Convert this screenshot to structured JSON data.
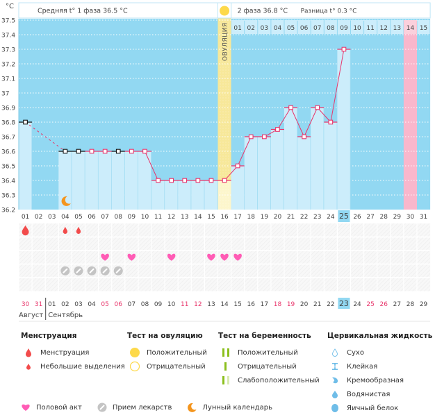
{
  "chart_data": {
    "type": "line",
    "title": "",
    "ylabel": "°C",
    "ylim": [
      36.2,
      37.5
    ],
    "yticks": [
      "37.5",
      "37.4",
      "37.3",
      "37.2",
      "37.1",
      "37",
      "36.9",
      "36.8",
      "36.7",
      "36.6",
      "36.5",
      "36.4",
      "36.3",
      "36.2"
    ],
    "cycle_days": [
      "01",
      "02",
      "03",
      "04",
      "05",
      "06",
      "07",
      "08",
      "09",
      "10",
      "11",
      "12",
      "13",
      "14",
      "15",
      "16",
      "17",
      "18",
      "19",
      "20",
      "21",
      "22",
      "23",
      "24",
      "25",
      "26",
      "27",
      "28",
      "29",
      "30",
      "31"
    ],
    "phase2_days": [
      "01",
      "02",
      "03",
      "04",
      "05",
      "06",
      "07",
      "08",
      "09",
      "10",
      "11",
      "12",
      "13",
      "14",
      "15"
    ],
    "temperatures": [
      {
        "day": 1,
        "value": 36.8,
        "marker": "black"
      },
      {
        "day": 4,
        "value": 36.6,
        "marker": "black"
      },
      {
        "day": 5,
        "value": 36.6,
        "marker": "black"
      },
      {
        "day": 6,
        "value": 36.6,
        "marker": "pink"
      },
      {
        "day": 7,
        "value": 36.6,
        "marker": "pink"
      },
      {
        "day": 8,
        "value": 36.6,
        "marker": "black"
      },
      {
        "day": 9,
        "value": 36.6,
        "marker": "pink"
      },
      {
        "day": 10,
        "value": 36.6,
        "marker": "pink"
      },
      {
        "day": 11,
        "value": 36.4,
        "marker": "pink"
      },
      {
        "day": 12,
        "value": 36.4,
        "marker": "pink"
      },
      {
        "day": 13,
        "value": 36.4,
        "marker": "pink"
      },
      {
        "day": 14,
        "value": 36.4,
        "marker": "pink"
      },
      {
        "day": 15,
        "value": 36.4,
        "marker": "pink"
      },
      {
        "day": 16,
        "value": 36.4,
        "marker": "pink"
      },
      {
        "day": 17,
        "value": 36.5,
        "marker": "pink"
      },
      {
        "day": 18,
        "value": 36.7,
        "marker": "pink"
      },
      {
        "day": 19,
        "value": 36.7,
        "marker": "pink"
      },
      {
        "day": 20,
        "value": 36.75,
        "marker": "pink"
      },
      {
        "day": 21,
        "value": 36.9,
        "marker": "pink"
      },
      {
        "day": 22,
        "value": 36.7,
        "marker": "pink"
      },
      {
        "day": 23,
        "value": 36.9,
        "marker": "pink"
      },
      {
        "day": 24,
        "value": 36.8,
        "marker": "pink"
      },
      {
        "day": 25,
        "value": 37.3,
        "marker": "pink"
      }
    ],
    "dashed_segment": [
      1,
      4
    ],
    "ovulation_day": 16,
    "ovulation_label": "ОВУЛЯЦИЯ",
    "predicted_period_day": 30,
    "today_cycle_day": 25,
    "moon_day": 4
  },
  "header": {
    "unit": "°C",
    "phase1_text": "Средняя t° 1 фаза 36.5 °C",
    "phase2_text": "2 фаза 36.8 °C",
    "diff_text": "Разница t° 0.3 °C"
  },
  "events": {
    "menstruation_days": [
      1
    ],
    "spotting_days": [
      4,
      5
    ],
    "intercourse_days": [
      7,
      9,
      12,
      15,
      16,
      17
    ],
    "medication_days": [
      4,
      5,
      6,
      7,
      8
    ]
  },
  "calendar": {
    "dates": [
      "30",
      "31",
      "01",
      "02",
      "03",
      "04",
      "05",
      "06",
      "07",
      "08",
      "09",
      "10",
      "11",
      "12",
      "13",
      "14",
      "15",
      "16",
      "17",
      "18",
      "19",
      "20",
      "21",
      "22",
      "23",
      "24",
      "25",
      "26",
      "27",
      "28",
      "29"
    ],
    "weekend_indices": [
      0,
      1,
      6,
      7,
      12,
      13,
      19,
      20,
      26,
      27
    ],
    "today_index": 24,
    "month1": "Август",
    "month2": "Сентябрь"
  },
  "colors": {
    "chart_bg": "#92d8f2",
    "bar": "#ccedfb",
    "line": "#e8356b",
    "ovulation": "#f7e89a",
    "period": "#f9b7cc",
    "weekend": "#e8356b",
    "heart": "#ff5cb5",
    "drop": "#f24b4b",
    "pill": "#c4c4c4",
    "moon": "#f4951d",
    "sun": "#fdd94a",
    "green": "#8bbf1d"
  },
  "legend": {
    "menstruation": {
      "title": "Менструация",
      "items": [
        "Менструация",
        "Небольшие выделения"
      ]
    },
    "ovulation_test": {
      "title": "Тест на овуляцию",
      "items": [
        "Положительный",
        "Отрицательный"
      ]
    },
    "pregnancy_test": {
      "title": "Тест на беременность",
      "items": [
        "Положительный",
        "Отрицательный",
        "Слабоположительный"
      ]
    },
    "cervical_fluid": {
      "title": "Цервикальная жидкость",
      "items": [
        "Сухо",
        "Клейкая",
        "Кремообразная",
        "Водянистая",
        "Яичный белок"
      ]
    },
    "bottom": [
      "Половой акт",
      "Прием лекарств",
      "Лунный календарь"
    ]
  }
}
